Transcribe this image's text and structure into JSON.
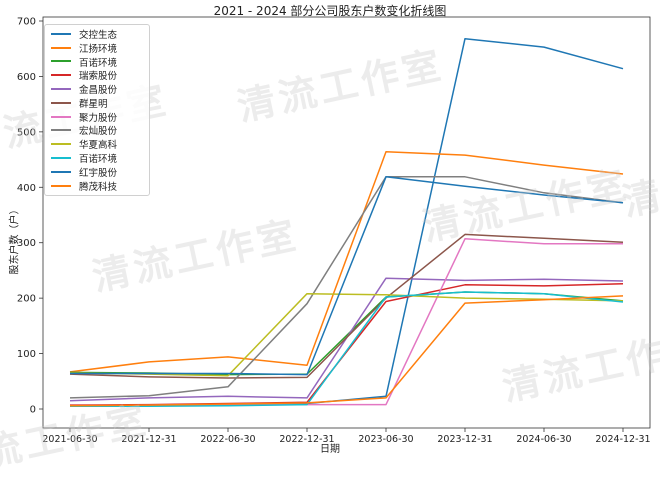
{
  "chart_data": {
    "type": "line",
    "title": "2021 - 2024 部分公司股东户数变化折线图",
    "xlabel": "日期",
    "ylabel": "股东户数（户）",
    "x": [
      "2021-06-30",
      "2021-12-31",
      "2022-06-30",
      "2022-12-31",
      "2023-06-30",
      "2023-12-31",
      "2024-06-30",
      "2024-12-31"
    ],
    "ylim": [
      0,
      700
    ],
    "yticks": [
      0,
      100,
      200,
      300,
      400,
      500,
      600,
      700
    ],
    "grid": false,
    "legend_position": "upper left",
    "series": [
      {
        "name": "交控生态",
        "color": "#1f77b4",
        "values": [
          6,
          6,
          8,
          10,
          23,
          668,
          653,
          614
        ]
      },
      {
        "name": "江扬环境",
        "color": "#ff7f0e",
        "values": [
          67,
          85,
          94,
          79,
          464,
          458,
          440,
          424
        ]
      },
      {
        "name": "百诺环境",
        "color": "#2ca02c",
        "values": [
          66,
          65,
          62,
          63,
          202,
          211,
          208,
          195
        ]
      },
      {
        "name": "瑞索股份",
        "color": "#d62728",
        "values": [
          7,
          8,
          10,
          12,
          194,
          224,
          222,
          226
        ]
      },
      {
        "name": "金昌股份",
        "color": "#9467bd",
        "values": [
          15,
          20,
          23,
          20,
          236,
          232,
          234,
          231
        ]
      },
      {
        "name": "群星明",
        "color": "#8c564b",
        "values": [
          63,
          58,
          56,
          57,
          200,
          315,
          308,
          301
        ]
      },
      {
        "name": "聚力股份",
        "color": "#e377c2",
        "values": [
          6,
          7,
          8,
          8,
          8,
          307,
          298,
          298
        ]
      },
      {
        "name": "宏灿股份",
        "color": "#7f7f7f",
        "values": [
          20,
          24,
          40,
          190,
          419,
          419,
          390,
          372
        ]
      },
      {
        "name": "华夏高科",
        "color": "#bcbd22",
        "values": [
          65,
          63,
          60,
          208,
          206,
          200,
          198,
          195
        ]
      },
      {
        "name": "百诺环境",
        "color": "#17becf",
        "values": [
          5,
          5,
          6,
          8,
          202,
          211,
          208,
          193
        ]
      },
      {
        "name": "红宇股份",
        "color": "#1f77b4",
        "values": [
          64,
          64,
          64,
          62,
          419,
          402,
          386,
          372
        ]
      },
      {
        "name": "腾茂科技",
        "color": "#ff7f0e",
        "values": [
          6,
          7,
          9,
          11,
          20,
          191,
          197,
          204
        ]
      }
    ]
  },
  "watermark": "清流工作室"
}
